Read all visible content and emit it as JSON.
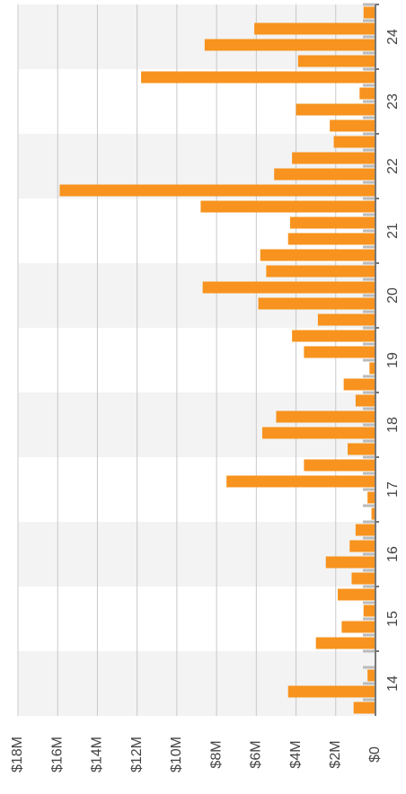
{
  "chart_data": {
    "type": "bar",
    "orientation": "rotated",
    "categories": [
      "14",
      "15",
      "16",
      "17",
      "18",
      "19",
      "20",
      "21",
      "22",
      "23",
      "24"
    ],
    "values": [
      [
        1100000,
        4400000,
        400000,
        0
      ],
      [
        3000000,
        1700000,
        600000,
        1900000
      ],
      [
        1200000,
        2500000,
        1300000,
        1000000
      ],
      [
        200000,
        400000,
        7500000,
        3600000
      ],
      [
        1400000,
        5700000,
        5000000,
        1000000
      ],
      [
        1600000,
        300000,
        3600000,
        4200000
      ],
      [
        2900000,
        5900000,
        8700000,
        5500000
      ],
      [
        5800000,
        4400000,
        4300000,
        8800000
      ],
      [
        15900000,
        5100000,
        4200000,
        2100000
      ],
      [
        2300000,
        4000000,
        800000,
        11800000
      ],
      [
        3900000,
        8600000,
        6100000,
        600000
      ]
    ],
    "color": "#f7931e",
    "ylim": [
      0,
      18000000
    ],
    "yticks": [
      {
        "value": 0,
        "label": "$0"
      },
      {
        "value": 2000000,
        "label": "$2M"
      },
      {
        "value": 4000000,
        "label": "$4M"
      },
      {
        "value": 6000000,
        "label": "$6M"
      },
      {
        "value": 8000000,
        "label": "$8M"
      },
      {
        "value": 10000000,
        "label": "$10M"
      },
      {
        "value": 12000000,
        "label": "$12M"
      },
      {
        "value": 14000000,
        "label": "$14M"
      },
      {
        "value": 16000000,
        "label": "$16M"
      },
      {
        "value": 18000000,
        "label": "$18M"
      }
    ],
    "grid": true
  }
}
